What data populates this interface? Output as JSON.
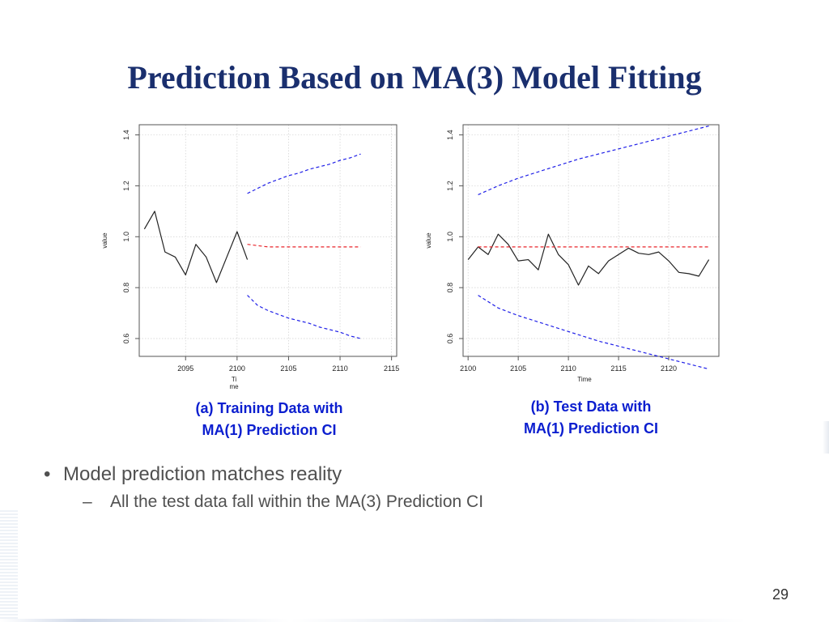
{
  "slide": {
    "title": "Prediction Based on MA(3) Model Fitting",
    "page_number": "29",
    "bullets": [
      {
        "marker": "•",
        "text": "Model prediction matches reality",
        "sub": [
          {
            "marker": "–",
            "text": "All the test data fall within the MA(3) Prediction CI"
          }
        ]
      }
    ]
  },
  "chart_data": [
    {
      "type": "line",
      "caption": [
        "(a) Training Data with",
        "MA(1) Prediction CI"
      ],
      "xlabel": "Ti\nme",
      "ylabel": "value",
      "xlim": [
        2090.5,
        2115.5
      ],
      "ylim": [
        0.53,
        1.44
      ],
      "xticks": [
        2095,
        2100,
        2105,
        2110,
        2115
      ],
      "yticks": [
        0.6,
        0.8,
        1.0,
        1.2,
        1.4
      ],
      "grid": true,
      "colors": {
        "data": "#222222",
        "mean": "#e8242a",
        "ci": "#2020e8"
      },
      "series": [
        {
          "role": "data",
          "style": "solid",
          "x": [
            2091,
            2092,
            2093,
            2094,
            2095,
            2096,
            2097,
            2098,
            2099,
            2100,
            2101
          ],
          "y": [
            1.03,
            1.1,
            0.94,
            0.92,
            0.85,
            0.97,
            0.92,
            0.82,
            0.92,
            1.02,
            0.91
          ]
        },
        {
          "role": "mean",
          "style": "dashed",
          "x": [
            2101,
            2102,
            2103,
            2104,
            2105,
            2106,
            2107,
            2108,
            2109,
            2110,
            2111,
            2112
          ],
          "y": [
            0.97,
            0.965,
            0.96,
            0.96,
            0.96,
            0.96,
            0.96,
            0.96,
            0.96,
            0.96,
            0.96,
            0.96
          ]
        },
        {
          "role": "ci",
          "style": "dashed",
          "x": [
            2101,
            2102,
            2103,
            2104,
            2105,
            2106,
            2107,
            2108,
            2109,
            2110,
            2111,
            2112
          ],
          "y": [
            1.17,
            1.19,
            1.21,
            1.225,
            1.24,
            1.25,
            1.265,
            1.275,
            1.285,
            1.3,
            1.31,
            1.325
          ]
        },
        {
          "role": "ci",
          "style": "dashed",
          "x": [
            2101,
            2102,
            2103,
            2104,
            2105,
            2106,
            2107,
            2108,
            2109,
            2110,
            2111,
            2112
          ],
          "y": [
            0.77,
            0.73,
            0.71,
            0.695,
            0.68,
            0.67,
            0.66,
            0.645,
            0.635,
            0.625,
            0.61,
            0.6
          ]
        }
      ]
    },
    {
      "type": "line",
      "caption": [
        "(b) Test Data with",
        "MA(1) Prediction CI"
      ],
      "xlabel": "Time",
      "ylabel": "value",
      "xlim": [
        2099.5,
        2125
      ],
      "ylim": [
        0.53,
        1.44
      ],
      "xticks": [
        2100,
        2105,
        2110,
        2115,
        2120
      ],
      "yticks": [
        0.6,
        0.8,
        1.0,
        1.2,
        1.4
      ],
      "grid": true,
      "colors": {
        "data": "#222222",
        "mean": "#e8242a",
        "ci": "#2020e8"
      },
      "series": [
        {
          "role": "data",
          "style": "solid",
          "x": [
            2100,
            2101,
            2102,
            2103,
            2104,
            2105,
            2106,
            2107,
            2108,
            2109,
            2110,
            2111,
            2112,
            2113,
            2114,
            2115,
            2116,
            2117,
            2118,
            2119,
            2120,
            2121,
            2122,
            2123,
            2124
          ],
          "y": [
            0.91,
            0.96,
            0.93,
            1.01,
            0.97,
            0.905,
            0.91,
            0.87,
            1.01,
            0.93,
            0.89,
            0.81,
            0.885,
            0.855,
            0.905,
            0.93,
            0.955,
            0.935,
            0.93,
            0.94,
            0.905,
            0.86,
            0.855,
            0.845,
            0.91
          ]
        },
        {
          "role": "mean",
          "style": "dashed",
          "x": [
            2101,
            2124
          ],
          "y": [
            0.96,
            0.96
          ]
        },
        {
          "role": "ci",
          "style": "dashed",
          "x": [
            2101,
            2103,
            2105,
            2107,
            2109,
            2111,
            2113,
            2115,
            2117,
            2119,
            2121,
            2123,
            2124
          ],
          "y": [
            1.165,
            1.2,
            1.23,
            1.255,
            1.28,
            1.305,
            1.325,
            1.345,
            1.365,
            1.385,
            1.405,
            1.425,
            1.435
          ]
        },
        {
          "role": "ci",
          "style": "dashed",
          "x": [
            2101,
            2103,
            2105,
            2107,
            2109,
            2111,
            2113,
            2115,
            2117,
            2119,
            2121,
            2123,
            2124
          ],
          "y": [
            0.77,
            0.72,
            0.69,
            0.665,
            0.64,
            0.615,
            0.59,
            0.57,
            0.55,
            0.53,
            0.51,
            0.49,
            0.48
          ]
        }
      ]
    }
  ]
}
